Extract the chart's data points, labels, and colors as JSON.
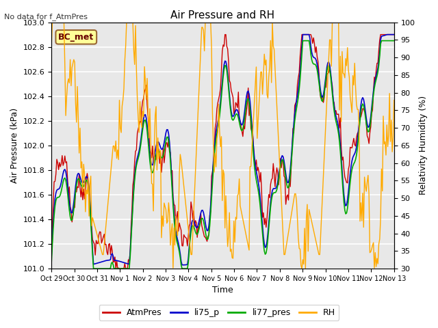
{
  "title": "Air Pressure and RH",
  "subtitle": "No data for f_AtmPres",
  "xlabel": "Time",
  "ylabel_left": "Air Pressure (kPa)",
  "ylabel_right": "Relativity Humidity (%)",
  "ylim_left": [
    101.0,
    103.0
  ],
  "ylim_right": [
    30,
    100
  ],
  "yticks_left": [
    101.0,
    101.2,
    101.4,
    101.6,
    101.8,
    102.0,
    102.2,
    102.4,
    102.6,
    102.8,
    103.0
  ],
  "yticks_right": [
    30,
    35,
    40,
    45,
    50,
    55,
    60,
    65,
    70,
    75,
    80,
    85,
    90,
    95,
    100
  ],
  "xtick_positions": [
    0,
    1,
    2,
    3,
    4,
    5,
    6,
    7,
    8,
    9,
    10,
    11,
    12,
    13,
    14,
    15
  ],
  "xtick_labels": [
    "Oct 29",
    "Oct 30",
    "Oct 31",
    "Nov 1",
    "Nov 2",
    "Nov 3",
    "Nov 4",
    "Nov 5",
    "Nov 6",
    "Nov 7",
    "Nov 8",
    "Nov 9",
    "Nov 10",
    "Nov 11",
    "Nov 12",
    "Nov 13"
  ],
  "legend_labels": [
    "AtmPres",
    "li75_p",
    "li77_pres",
    "RH"
  ],
  "legend_colors": [
    "#cc0000",
    "#0000cc",
    "#00aa00",
    "#ffaa00"
  ],
  "line_colors": [
    "#cc0000",
    "#0000cc",
    "#00aa00",
    "#ffaa00"
  ],
  "annotation_text": "BC_met",
  "background_color": "#e8e8e8",
  "fig_background": "#ffffff",
  "grid_color": "#ffffff"
}
